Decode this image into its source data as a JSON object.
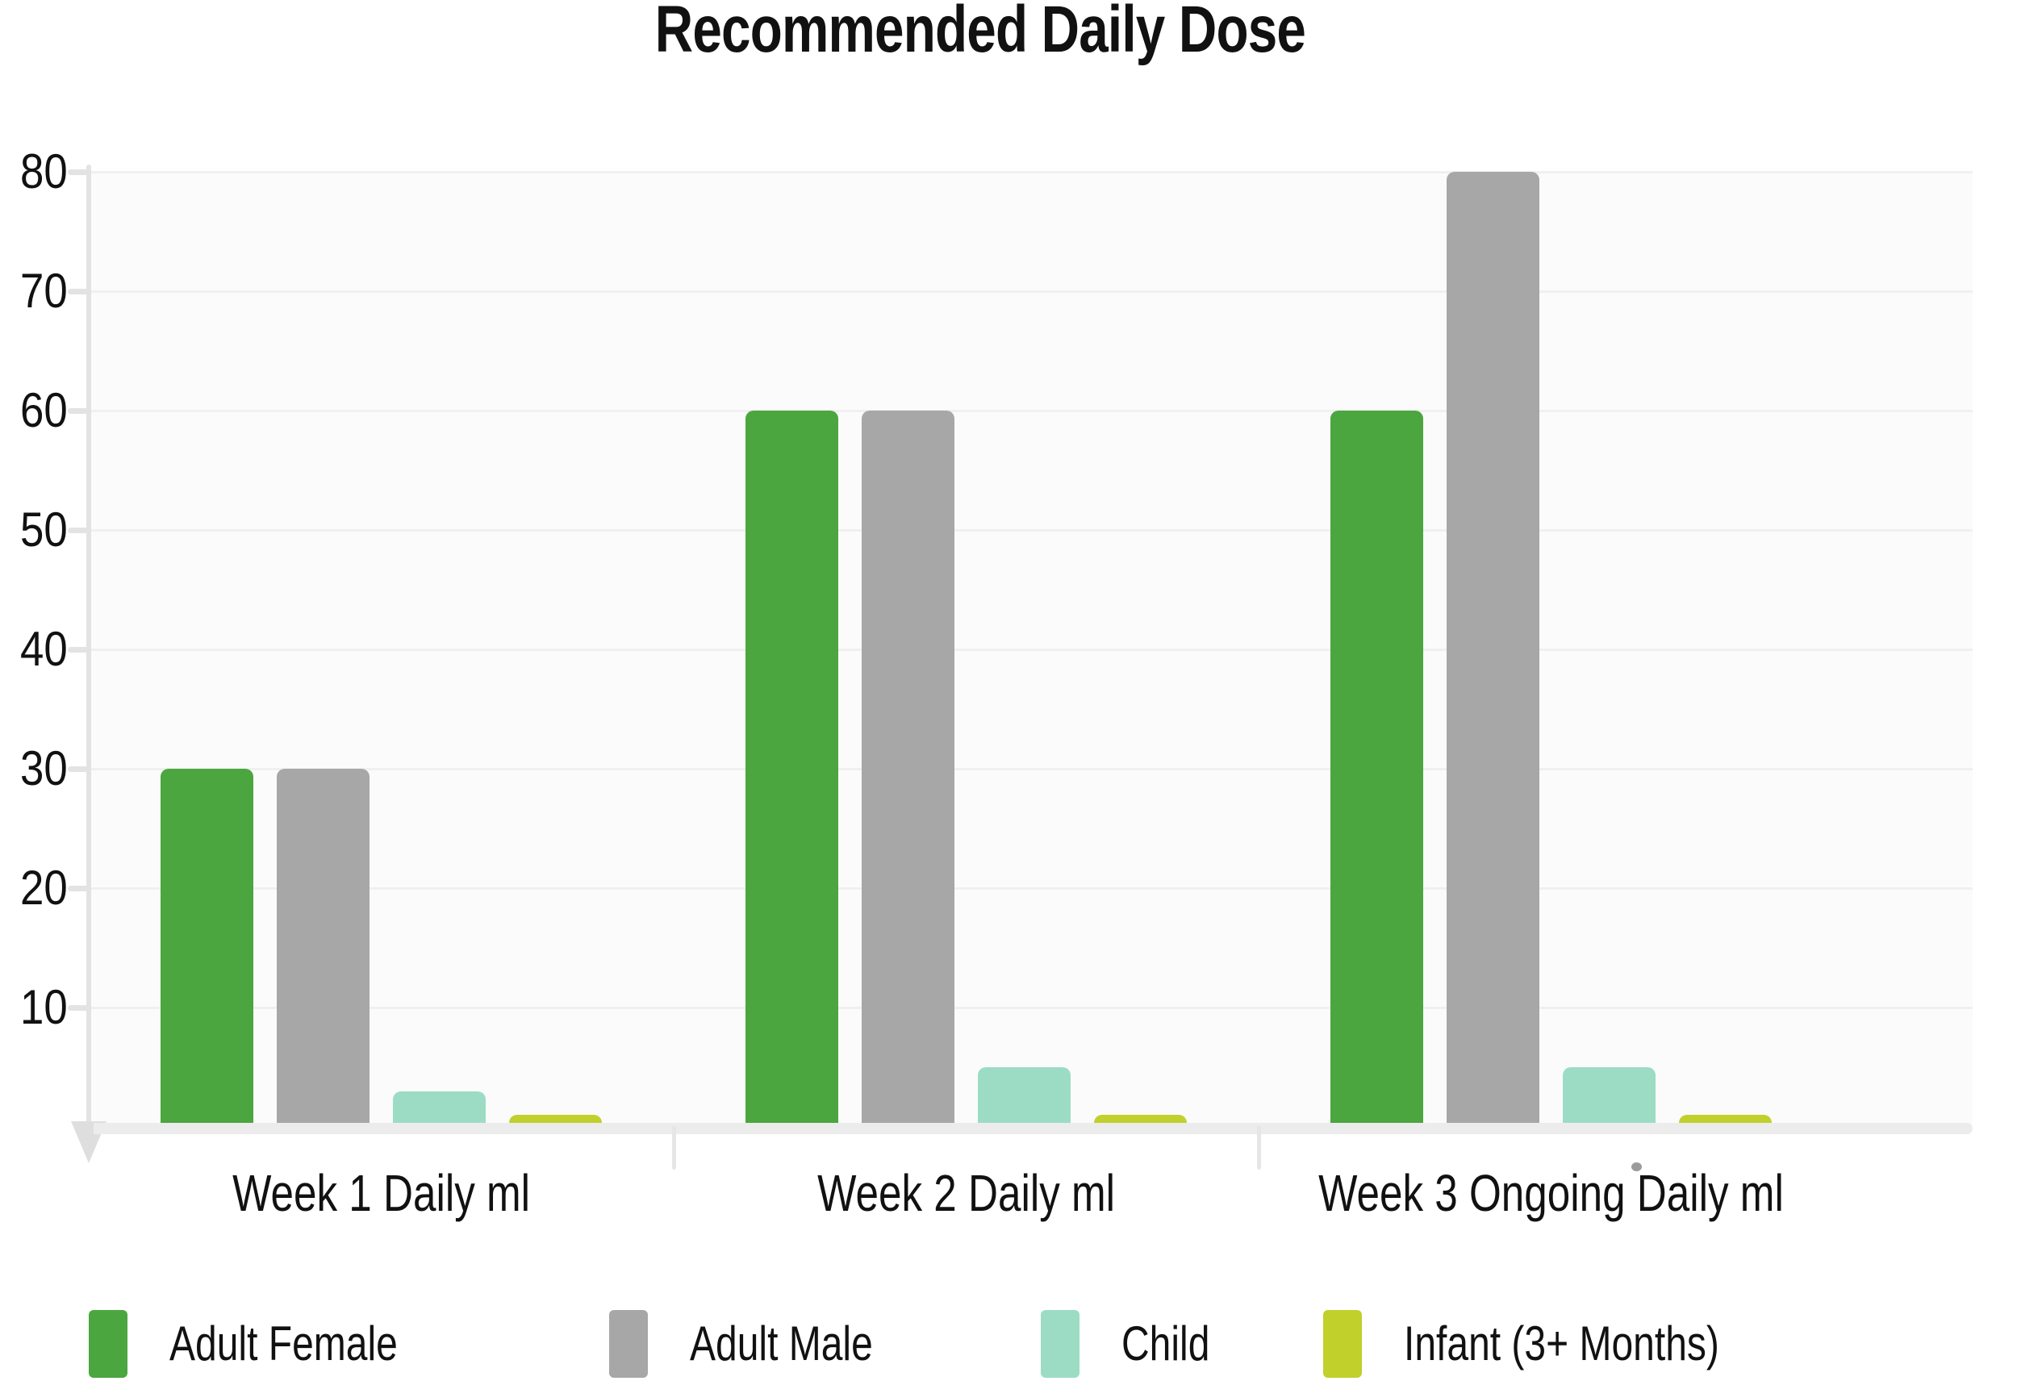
{
  "title": "Recommended Daily Dose",
  "chart_data": {
    "type": "bar",
    "title": "Recommended Daily Dose",
    "categories": [
      "Week 1 Daily ml",
      "Week 2 Daily ml",
      "Week 3 Ongoing Daily ml"
    ],
    "series": [
      {
        "name": "Adult Female",
        "color": "#4BA63F",
        "values": [
          30,
          60,
          60
        ]
      },
      {
        "name": "Adult Male",
        "color": "#A7A7A7",
        "values": [
          30,
          60,
          80
        ]
      },
      {
        "name": "Child",
        "color": "#9CDCC5",
        "values": [
          3,
          5,
          5
        ]
      },
      {
        "name": "Infant (3+ Months)",
        "color": "#C1D02B",
        "values": [
          1,
          1,
          1
        ]
      }
    ],
    "xlabel": "",
    "ylabel": "",
    "ylim": [
      0,
      80
    ],
    "yticks": [
      10,
      20,
      30,
      40,
      50,
      60,
      70,
      80
    ],
    "grid": true,
    "legend_position": "bottom"
  },
  "colors": {
    "grid": "#F0F0F0",
    "axis": "#E3E3E3",
    "baseline": "#ECECEC",
    "plot_bg": "#FBFBFB",
    "text": "#111111"
  }
}
